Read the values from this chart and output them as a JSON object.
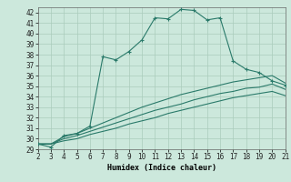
{
  "xlabel": "Humidex (Indice chaleur)",
  "x_values": [
    2,
    3,
    4,
    5,
    6,
    7,
    8,
    9,
    10,
    11,
    12,
    13,
    14,
    15,
    16,
    17,
    18,
    19,
    20,
    21
  ],
  "main_line": [
    29.5,
    29.2,
    30.3,
    30.5,
    31.2,
    37.8,
    37.5,
    38.3,
    39.4,
    41.5,
    41.4,
    42.3,
    42.2,
    41.3,
    41.5,
    37.4,
    36.6,
    36.3,
    35.5,
    35.1
  ],
  "line2": [
    29.5,
    29.5,
    30.2,
    30.5,
    31.0,
    31.5,
    32.0,
    32.5,
    33.0,
    33.4,
    33.8,
    34.2,
    34.5,
    34.8,
    35.1,
    35.4,
    35.6,
    35.8,
    36.0,
    35.3
  ],
  "line3": [
    29.5,
    29.5,
    30.0,
    30.3,
    30.7,
    31.1,
    31.5,
    31.9,
    32.3,
    32.7,
    33.0,
    33.3,
    33.7,
    34.0,
    34.3,
    34.5,
    34.8,
    34.9,
    35.2,
    34.7
  ],
  "line4": [
    29.5,
    29.5,
    29.8,
    30.0,
    30.4,
    30.7,
    31.0,
    31.4,
    31.7,
    32.0,
    32.4,
    32.7,
    33.0,
    33.3,
    33.6,
    33.9,
    34.1,
    34.3,
    34.5,
    34.1
  ],
  "ylim": [
    29,
    42.5
  ],
  "xlim": [
    2,
    21
  ],
  "yticks": [
    29,
    30,
    31,
    32,
    33,
    34,
    35,
    36,
    37,
    38,
    39,
    40,
    41,
    42
  ],
  "xticks": [
    2,
    3,
    4,
    5,
    6,
    7,
    8,
    9,
    10,
    11,
    12,
    13,
    14,
    15,
    16,
    17,
    18,
    19,
    20,
    21
  ],
  "line_color": "#2a7a6a",
  "bg_color": "#cce8dc",
  "grid_color": "#aaccbc"
}
